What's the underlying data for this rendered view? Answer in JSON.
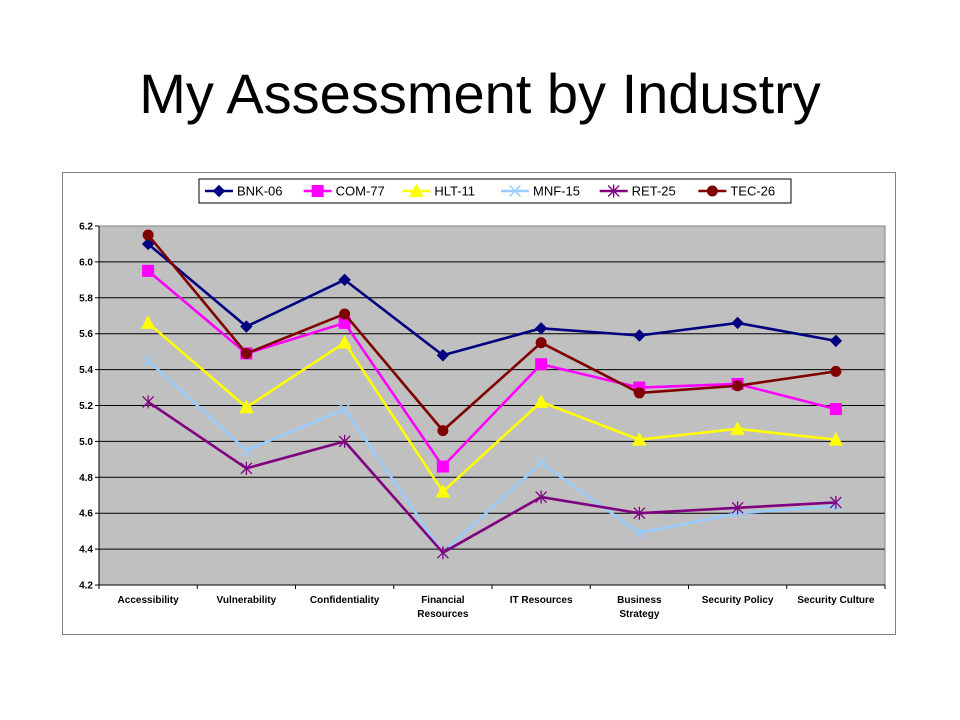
{
  "slide": {
    "title": "My Assessment by Industry"
  },
  "chart_data": {
    "type": "line",
    "title": "",
    "xlabel": "",
    "ylabel": "",
    "categories": [
      [
        "Accessibility"
      ],
      [
        "Vulnerability"
      ],
      [
        "Confidentiality"
      ],
      [
        "Financial",
        "Resources"
      ],
      [
        "IT Resources"
      ],
      [
        "Business",
        "Strategy"
      ],
      [
        "Security Policy"
      ],
      [
        "Security Culture"
      ]
    ],
    "ylim": [
      4.2,
      6.2
    ],
    "yticks": [
      "4.2",
      "4.4",
      "4.6",
      "4.8",
      "5.0",
      "5.2",
      "5.4",
      "5.6",
      "5.8",
      "6.0",
      "6.2"
    ],
    "grid": true,
    "plot_background": "#c0c0c0",
    "legend_position": "top",
    "series": [
      {
        "name": "BNK-06",
        "color": "#000080",
        "marker": "diamond",
        "values": [
          6.1,
          5.64,
          5.9,
          5.48,
          5.63,
          5.59,
          5.66,
          5.56
        ]
      },
      {
        "name": "COM-77",
        "color": "#ff00ff",
        "marker": "square",
        "values": [
          5.95,
          5.49,
          5.66,
          4.86,
          5.43,
          5.3,
          5.32,
          5.18
        ]
      },
      {
        "name": "HLT-11",
        "color": "#ffff00",
        "marker": "triangle",
        "values": [
          5.66,
          5.19,
          5.55,
          4.72,
          5.22,
          5.01,
          5.07,
          5.01
        ]
      },
      {
        "name": "MNF-15",
        "color": "#99ccff",
        "marker": "x",
        "values": [
          5.45,
          4.95,
          5.18,
          4.38,
          4.88,
          4.49,
          4.6,
          4.64
        ]
      },
      {
        "name": "RET-25",
        "color": "#800080",
        "marker": "star",
        "values": [
          5.22,
          4.85,
          5.0,
          4.38,
          4.69,
          4.6,
          4.63,
          4.66
        ]
      },
      {
        "name": "TEC-26",
        "color": "#800000",
        "marker": "circle",
        "values": [
          6.15,
          5.49,
          5.71,
          5.06,
          5.55,
          5.27,
          5.31,
          5.39
        ]
      }
    ]
  }
}
